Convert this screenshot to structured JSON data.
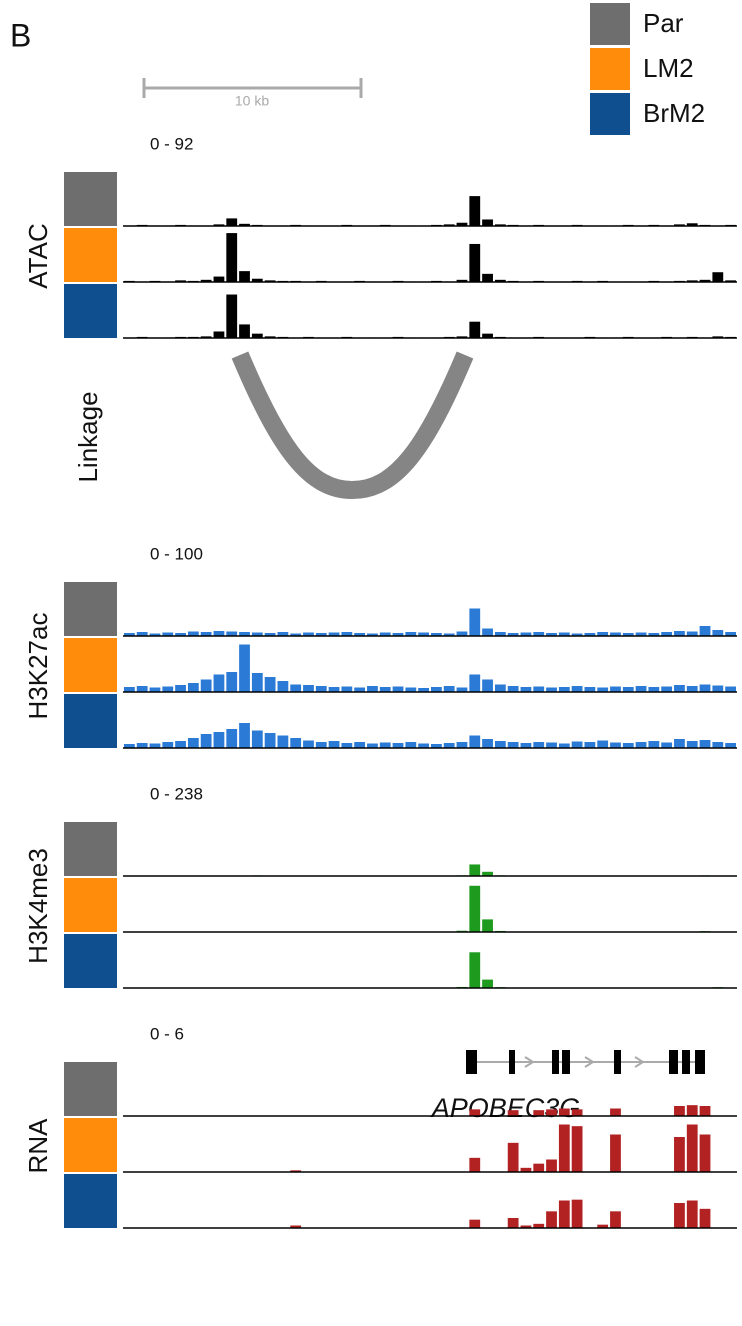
{
  "panel_label": "B",
  "legend": {
    "items": [
      {
        "name": "Par",
        "color": "#6e6e6e"
      },
      {
        "name": "LM2",
        "color": "#ff8c0a"
      },
      {
        "name": "BrM2",
        "color": "#0f4f8f"
      }
    ]
  },
  "scale_bar": {
    "label": "10 kb"
  },
  "linkage": {
    "label": "Linkage"
  },
  "tracks": [
    {
      "name": "ATAC",
      "range_label": "0 - 92",
      "ylim": [
        0,
        92
      ],
      "color": "#000000",
      "samples": [
        {
          "values": [
            1,
            2,
            1,
            1,
            2,
            1,
            1,
            3,
            14,
            4,
            2,
            1,
            1,
            2,
            1,
            1,
            1,
            2,
            1,
            1,
            2,
            1,
            1,
            1,
            2,
            3,
            6,
            55,
            12,
            3,
            2,
            1,
            2,
            1,
            1,
            2,
            1,
            1,
            1,
            2,
            1,
            2,
            1,
            3,
            5,
            2,
            1,
            2
          ]
        },
        {
          "values": [
            2,
            1,
            2,
            1,
            3,
            2,
            4,
            10,
            90,
            20,
            6,
            3,
            2,
            2,
            1,
            2,
            1,
            1,
            2,
            1,
            1,
            2,
            1,
            1,
            2,
            1,
            4,
            70,
            15,
            4,
            2,
            1,
            2,
            1,
            1,
            2,
            1,
            2,
            1,
            1,
            1,
            2,
            1,
            2,
            3,
            4,
            18,
            3
          ]
        },
        {
          "values": [
            1,
            2,
            1,
            1,
            2,
            2,
            3,
            12,
            80,
            25,
            8,
            3,
            2,
            1,
            2,
            1,
            1,
            2,
            1,
            1,
            1,
            2,
            1,
            1,
            1,
            2,
            3,
            30,
            8,
            2,
            1,
            1,
            2,
            1,
            1,
            1,
            2,
            1,
            1,
            2,
            1,
            1,
            2,
            1,
            2,
            1,
            3,
            2
          ]
        }
      ]
    },
    {
      "name": "H3K27ac",
      "range_label": "0 - 100",
      "ylim": [
        0,
        100
      ],
      "color": "#2b7bd6",
      "samples": [
        {
          "values": [
            6,
            8,
            5,
            7,
            6,
            9,
            8,
            10,
            9,
            8,
            7,
            6,
            8,
            5,
            7,
            6,
            7,
            8,
            6,
            5,
            7,
            6,
            8,
            7,
            6,
            5,
            9,
            55,
            15,
            8,
            6,
            7,
            8,
            6,
            7,
            5,
            6,
            8,
            7,
            6,
            7,
            6,
            8,
            10,
            9,
            20,
            12,
            8
          ]
        },
        {
          "values": [
            10,
            12,
            9,
            11,
            14,
            18,
            25,
            35,
            40,
            95,
            38,
            30,
            22,
            15,
            14,
            12,
            10,
            11,
            9,
            12,
            10,
            11,
            9,
            8,
            10,
            12,
            9,
            35,
            25,
            15,
            12,
            10,
            11,
            9,
            10,
            12,
            10,
            9,
            11,
            10,
            12,
            10,
            11,
            14,
            12,
            15,
            13,
            11
          ]
        },
        {
          "values": [
            8,
            10,
            9,
            12,
            14,
            20,
            28,
            32,
            38,
            50,
            35,
            30,
            25,
            20,
            15,
            12,
            14,
            10,
            12,
            9,
            11,
            10,
            12,
            9,
            8,
            10,
            12,
            25,
            18,
            14,
            12,
            10,
            12,
            11,
            9,
            13,
            12,
            15,
            11,
            10,
            12,
            14,
            11,
            18,
            14,
            16,
            12,
            10
          ]
        }
      ]
    },
    {
      "name": "H3K4me3",
      "range_label": "0 - 238",
      "ylim": [
        0,
        238
      ],
      "color": "#1e9a1e",
      "samples": [
        {
          "values": [
            2,
            1,
            1,
            2,
            1,
            1,
            1,
            2,
            1,
            1,
            3,
            1,
            1,
            2,
            1,
            1,
            1,
            2,
            1,
            1,
            1,
            2,
            1,
            1,
            1,
            1,
            3,
            55,
            20,
            3,
            1,
            1,
            2,
            1,
            1,
            1,
            2,
            1,
            1,
            1,
            1,
            1,
            2,
            1,
            1,
            3,
            1,
            1
          ]
        },
        {
          "values": [
            1,
            1,
            1,
            2,
            1,
            1,
            1,
            1,
            1,
            1,
            2,
            1,
            1,
            1,
            1,
            1,
            1,
            2,
            1,
            1,
            1,
            2,
            1,
            1,
            1,
            1,
            6,
            220,
            60,
            5,
            1,
            1,
            1,
            1,
            1,
            1,
            1,
            1,
            1,
            1,
            1,
            1,
            1,
            1,
            2,
            4,
            1,
            1
          ]
        },
        {
          "values": [
            2,
            2,
            1,
            1,
            1,
            1,
            1,
            1,
            1,
            1,
            1,
            1,
            2,
            1,
            1,
            1,
            1,
            1,
            2,
            1,
            1,
            1,
            1,
            1,
            1,
            1,
            5,
            170,
            40,
            4,
            1,
            1,
            1,
            1,
            2,
            1,
            1,
            1,
            1,
            1,
            1,
            1,
            1,
            1,
            1,
            1,
            4,
            1
          ]
        }
      ]
    },
    {
      "name": "RNA",
      "range_label": "0 - 6",
      "ylim": [
        0,
        6
      ],
      "color": "#b22222",
      "samples": [
        {
          "values": [
            0,
            0,
            0,
            0,
            0,
            0,
            0,
            0,
            0,
            0,
            0,
            0,
            0,
            0,
            0,
            0,
            0,
            0,
            0,
            0,
            0,
            0,
            0,
            0,
            0,
            0,
            0,
            0.8,
            0,
            0,
            0.7,
            0,
            0.7,
            0.8,
            0.9,
            0.8,
            0,
            0,
            0.9,
            0,
            0,
            0,
            0,
            1.2,
            1.3,
            1.2,
            0,
            0
          ]
        },
        {
          "values": [
            0,
            0,
            0,
            0,
            0,
            0,
            0,
            0,
            0,
            0,
            0,
            0,
            0,
            0.2,
            0,
            0,
            0,
            0,
            0,
            0,
            0,
            0,
            0,
            0,
            0,
            0,
            0,
            1.7,
            0,
            0,
            3.5,
            0.5,
            1,
            1.5,
            5.7,
            5.5,
            0,
            0,
            4.5,
            0,
            0,
            0,
            0,
            4.2,
            5.7,
            4.5,
            0,
            0
          ]
        },
        {
          "values": [
            0,
            0,
            0,
            0,
            0,
            0,
            0,
            0,
            0,
            0,
            0,
            0,
            0,
            0.3,
            0,
            0,
            0,
            0,
            0,
            0,
            0,
            0,
            0,
            0,
            0,
            0,
            0,
            1,
            0,
            0,
            1.2,
            0.3,
            0.5,
            2,
            3.3,
            3.4,
            0,
            0.4,
            2,
            0,
            0,
            0,
            0,
            3,
            3.3,
            2.3,
            0,
            0
          ]
        }
      ]
    }
  ],
  "gene": {
    "name": "APOBEC3G"
  }
}
